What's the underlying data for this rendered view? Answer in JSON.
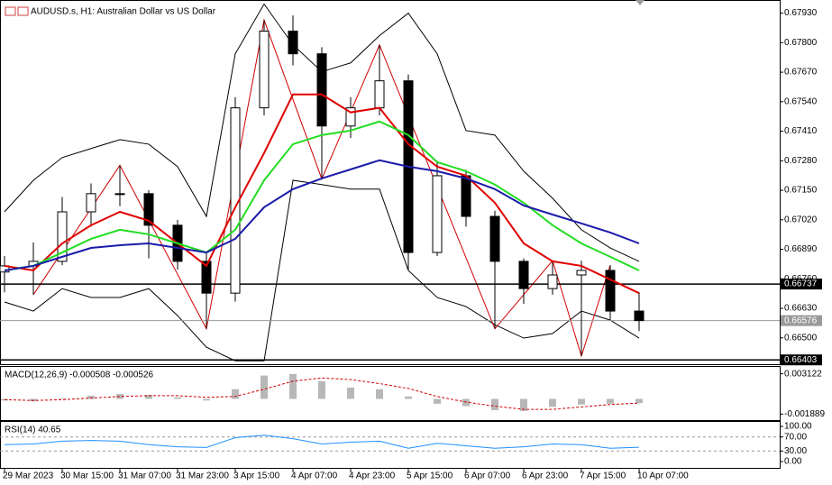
{
  "chart_data": [
    {
      "type": "candlestick",
      "title": "AUDUSD.s, H1:  Australian Dollar vs US Dollar",
      "categories": [
        "29 Mar 2023",
        null,
        "30 Mar 15:00",
        null,
        "31 Mar 07:00",
        null,
        "31 Mar 23:00",
        null,
        "3 Apr 15:00",
        null,
        "4 Apr 07:00",
        null,
        "4 Apr 23:00",
        null,
        "5 Apr 15:00",
        null,
        "6 Apr 07:00",
        null,
        "6 Apr 23:00",
        null,
        "7 Apr 15:00",
        null,
        "10 Apr 07:00"
      ],
      "open": [
        0.6679,
        0.66817,
        0.66837,
        0.67055,
        0.67135,
        0.67135,
        0.66996,
        0.66837,
        0.66697,
        0.67513,
        0.67851,
        0.67751,
        0.67433,
        0.67513,
        0.67632,
        0.66876,
        0.67214,
        0.67035,
        0.66837,
        0.66717,
        0.66777,
        0.66797,
        0.66618
      ],
      "high": [
        0.6686,
        0.6692,
        0.6712,
        0.6718,
        0.6726,
        0.6715,
        0.6702,
        0.6688,
        0.6756,
        0.679,
        0.6792,
        0.6778,
        0.6756,
        0.6779,
        0.6766,
        0.6728,
        0.6724,
        0.6706,
        0.6685,
        0.6684,
        0.6684,
        0.6682,
        0.667
      ],
      "low": [
        0.667,
        0.6669,
        0.6682,
        0.6699,
        0.6708,
        0.6685,
        0.668,
        0.6654,
        0.6666,
        0.6748,
        0.677,
        0.672,
        0.6738,
        0.6748,
        0.668,
        0.6686,
        0.6699,
        0.6654,
        0.6665,
        0.6669,
        0.6642,
        0.6658,
        0.6653
      ],
      "close": [
        0.66817,
        0.66837,
        0.67055,
        0.67135,
        0.67135,
        0.66996,
        0.66837,
        0.66697,
        0.67513,
        0.67851,
        0.67751,
        0.67433,
        0.67513,
        0.67632,
        0.66876,
        0.67214,
        0.67035,
        0.66837,
        0.66717,
        0.66777,
        0.66797,
        0.66618,
        0.66576
      ],
      "bull_color": "#ffffff",
      "bear_color": "#000000",
      "wick_color": "#000000",
      "lines": [
        {
          "color": "#e00000",
          "values": [
            0.66817,
            0.66797,
            0.66916,
            0.66996,
            0.67055,
            0.67016,
            0.66916,
            0.66817,
            0.67075,
            0.67314,
            0.67572,
            0.67572,
            0.67493,
            0.67513,
            0.67353,
            0.67254,
            0.67214,
            0.67095,
            0.66916,
            0.66837,
            0.66817,
            0.66757,
            0.66697
          ]
        },
        {
          "color": "#22dd22",
          "values": [
            0.66797,
            0.66817,
            0.66876,
            0.66936,
            0.66976,
            0.66956,
            0.66916,
            0.66876,
            0.66976,
            0.67194,
            0.67353,
            0.67393,
            0.67413,
            0.67453,
            0.67393,
            0.67274,
            0.67234,
            0.67175,
            0.67095,
            0.66996,
            0.66916,
            0.66857,
            0.66797
          ]
        },
        {
          "color": "#1a1aaa",
          "values": [
            0.66797,
            0.66817,
            0.66857,
            0.66896,
            0.66908,
            0.66916,
            0.66896,
            0.66876,
            0.66936,
            0.67075,
            0.67155,
            0.67202,
            0.67242,
            0.67282,
            0.67254,
            0.67234,
            0.67202,
            0.67155,
            0.67083,
            0.67043,
            0.67004,
            0.66964,
            0.66916
          ]
        }
      ],
      "bollinger": {
        "color": "#000000",
        "upper": [
          0.67055,
          0.67194,
          0.67294,
          0.67334,
          0.67373,
          0.67353,
          0.67254,
          0.67035,
          0.67751,
          0.6797,
          0.67791,
          0.67672,
          0.67711,
          0.67831,
          0.6793,
          0.67751,
          0.67413,
          0.67393,
          0.67234,
          0.67115,
          0.66976,
          0.66896,
          0.66837
        ],
        "lower": [
          0.66658,
          0.66618,
          0.66717,
          0.66678,
          0.66678,
          0.66717,
          0.66598,
          0.66459,
          0.66399,
          0.66399,
          0.67194,
          0.67175,
          0.67155,
          0.67155,
          0.66797,
          0.66678,
          0.66638,
          0.66558,
          0.66499,
          0.66519,
          0.66618,
          0.66578,
          0.66499
        ]
      },
      "zigzag": {
        "color": "#d00000",
        "x": [
          1,
          4,
          7,
          9,
          11,
          13,
          17,
          19,
          20,
          21
        ],
        "values": [
          0.6669,
          0.6726,
          0.6654,
          0.679,
          0.672,
          0.6779,
          0.6654,
          0.6684,
          0.6642,
          0.6682
        ]
      },
      "levels": [
        {
          "value": 0.66737,
          "label": "0.66737",
          "color": "#000000"
        },
        {
          "value": 0.66576,
          "label": "0.66576",
          "color": "#9a9a9a"
        },
        {
          "value": 0.66403,
          "label": "0.66403",
          "color": "#000000"
        }
      ],
      "ylim": [
        0.66384,
        0.6798
      ],
      "yticks": [
        {
          "value": 0.6793,
          "label": "0.67930"
        },
        {
          "value": 0.678,
          "label": "0.67800"
        },
        {
          "value": 0.6767,
          "label": "0.67670"
        },
        {
          "value": 0.6754,
          "label": "0.67540"
        },
        {
          "value": 0.6741,
          "label": "0.67410"
        },
        {
          "value": 0.6728,
          "label": "0.67280"
        },
        {
          "value": 0.6715,
          "label": "0.67150"
        },
        {
          "value": 0.6702,
          "label": "0.67020"
        },
        {
          "value": 0.6689,
          "label": "0.66890"
        },
        {
          "value": 0.6676,
          "label": "0.66760"
        },
        {
          "value": 0.6663,
          "label": "0.66630"
        },
        {
          "value": 0.665,
          "label": "0.66500"
        }
      ]
    },
    {
      "type": "macd",
      "label": "MACD(12,26,9) -0.000508 -0.000526",
      "color": "#b8b8b8",
      "values": [
        -0.0002,
        -0.0003,
        0.0001,
        0.0004,
        0.0006,
        0.0005,
        0.0002,
        -0.0002,
        0.0012,
        0.0029,
        0.0031,
        0.0022,
        0.0014,
        0.0012,
        0.0003,
        -0.0006,
        -0.0009,
        -0.0014,
        -0.0015,
        -0.001,
        -0.0007,
        -0.0006,
        -0.000508
      ],
      "signal": {
        "color": "#d00000",
        "values": [
          -0.0001,
          -0.0002,
          -0.0001,
          0.0001,
          0.0003,
          0.0004,
          0.0004,
          0.0002,
          0.0003,
          0.0012,
          0.0022,
          0.0026,
          0.0024,
          0.0019,
          0.0013,
          0.0003,
          -0.0004,
          -0.0009,
          -0.0013,
          -0.0013,
          -0.001,
          -0.0007,
          -0.000526
        ]
      },
      "ylim": [
        -0.002635,
        0.003975
      ],
      "yticks": [
        0.003122,
        -0.001889
      ]
    },
    {
      "type": "line",
      "label": "RSI(14) 40.65",
      "color": "#1e90ff",
      "values": [
        48,
        50,
        58,
        60,
        58,
        48,
        42,
        40,
        68,
        75,
        65,
        50,
        55,
        58,
        38,
        52,
        45,
        38,
        42,
        50,
        48,
        38,
        40.65
      ],
      "levels": [
        70,
        30
      ],
      "ylim": [
        -17.9,
        112.8
      ],
      "yticks": [
        {
          "value": 100,
          "label": "100.00"
        },
        {
          "value": 70,
          "label": "70.00"
        },
        {
          "value": 30,
          "label": "30.00"
        },
        {
          "value": 0,
          "label": "0.00"
        }
      ]
    }
  ]
}
